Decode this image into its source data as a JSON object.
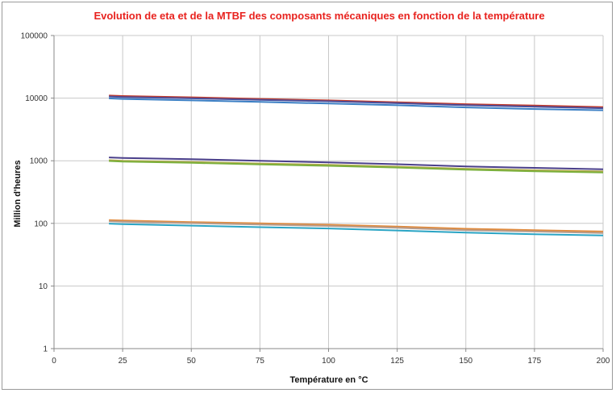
{
  "chart_data": {
    "type": "line",
    "title": "Evolution de eta et de la MTBF des composants mécaniques en fonction de la température",
    "xlabel": "Température en °C",
    "ylabel": "Million d'heures",
    "xlim": [
      0,
      200
    ],
    "ylim": [
      1,
      100000
    ],
    "yscale": "log",
    "grid": true,
    "x_ticks": [
      "0",
      "25",
      "50",
      "75",
      "100",
      "125",
      "150",
      "175",
      "200"
    ],
    "y_ticks": [
      "1",
      "10",
      "100",
      "1000",
      "10000",
      "100000"
    ],
    "x": [
      20,
      25,
      50,
      75,
      100,
      125,
      150,
      175,
      200
    ],
    "series": [
      {
        "color": "#c0392b",
        "values": [
          11000,
          10800,
          10300,
          9700,
          9200,
          8600,
          8000,
          7600,
          7200
        ]
      },
      {
        "color": "#4a4f9c",
        "values": [
          10600,
          10400,
          9900,
          9400,
          8900,
          8300,
          7700,
          7300,
          6900
        ]
      },
      {
        "color": "#3b7fc4",
        "values": [
          9900,
          9700,
          9200,
          8700,
          8200,
          7700,
          7100,
          6700,
          6400
        ]
      },
      {
        "color": "#4a3f8a",
        "values": [
          1130,
          1110,
          1060,
          1000,
          940,
          880,
          810,
          770,
          730
        ]
      },
      {
        "color": "#b2a84a",
        "values": [
          1020,
          1000,
          955,
          905,
          860,
          805,
          745,
          705,
          675
        ]
      },
      {
        "color": "#7bb03c",
        "values": [
          990,
          970,
          925,
          875,
          830,
          780,
          720,
          680,
          650
        ]
      },
      {
        "color": "#e08a3c",
        "values": [
          113,
          111,
          105,
          100,
          95,
          89,
          82,
          78,
          74
        ]
      },
      {
        "color": "#b79c8c",
        "values": [
          108,
          106,
          101,
          96,
          91,
          85,
          78,
          74,
          70
        ]
      },
      {
        "color": "#2aa4c4",
        "values": [
          99,
          97,
          92,
          87,
          83,
          77,
          71,
          67,
          64
        ]
      }
    ]
  }
}
